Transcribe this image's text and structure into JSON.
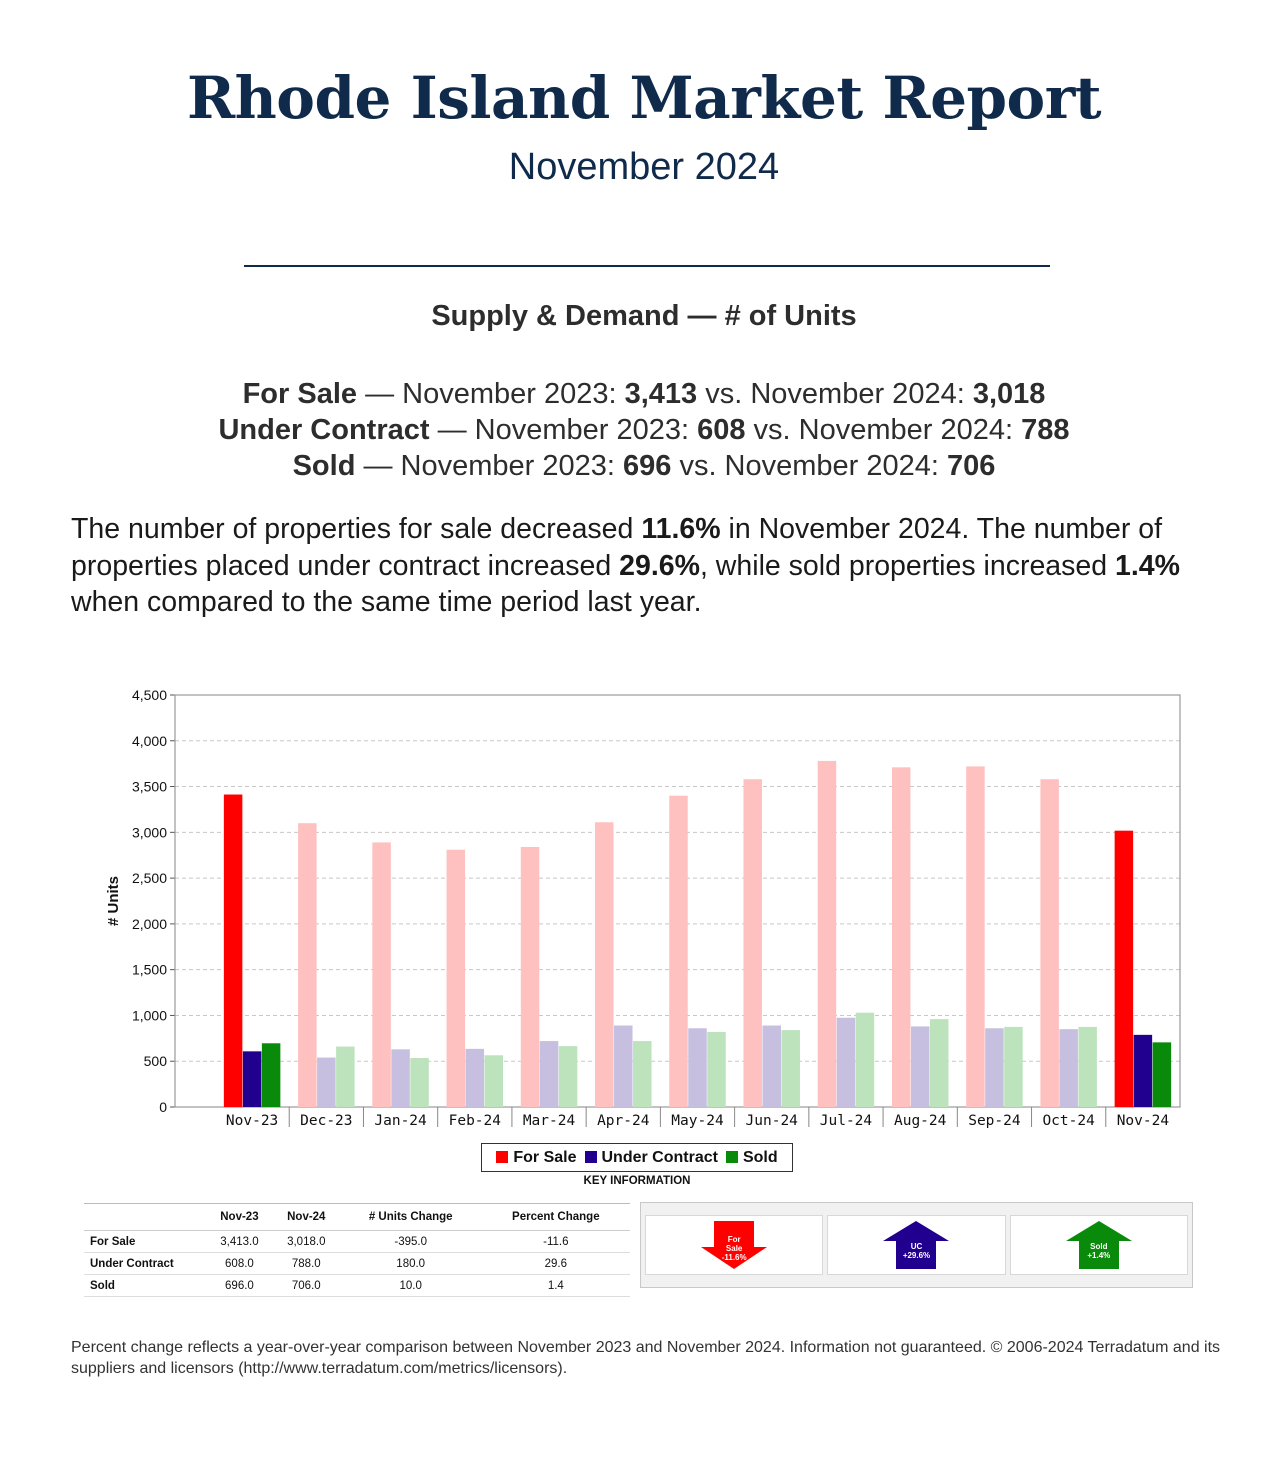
{
  "header": {
    "title": "Rhode Island Market Report",
    "subtitle": "November 2024"
  },
  "section_heading": "Supply & Demand — # of Units",
  "comparisons": [
    {
      "label": "For Sale",
      "sep": " — November 2023: ",
      "v2023": "3,413",
      "mid": " vs. November 2024: ",
      "v2024": "3,018"
    },
    {
      "label": "Under Contract",
      "sep": " — November 2023: ",
      "v2023": "608",
      "mid": " vs. November 2024: ",
      "v2024": "788"
    },
    {
      "label": "Sold",
      "sep": " — November 2023: ",
      "v2023": "696",
      "mid": " vs. November 2024: ",
      "v2024": "706"
    }
  ],
  "summary": {
    "p1": "The number of properties for sale decreased ",
    "b1": "11.6%",
    "p2": " in November 2024. The number of properties placed under contract increased ",
    "b2": "29.6%",
    "p3": ", while sold properties increased ",
    "b3": "1.4%",
    "p4": " when compared to the same time period last year."
  },
  "chart_data": {
    "type": "bar",
    "ylabel": "# Units",
    "ylim": [
      0,
      4500
    ],
    "yticks": [
      0,
      500,
      1000,
      1500,
      2000,
      2500,
      3000,
      3500,
      4000,
      4500
    ],
    "ytick_labels": [
      "0",
      "500",
      "1,000",
      "1,500",
      "2,000",
      "2,500",
      "3,000",
      "3,500",
      "4,000",
      "4,500"
    ],
    "grid": true,
    "categories": [
      "Nov-23",
      "Dec-23",
      "Jan-24",
      "Feb-24",
      "Mar-24",
      "Apr-24",
      "May-24",
      "Jun-24",
      "Jul-24",
      "Aug-24",
      "Sep-24",
      "Oct-24",
      "Nov-24"
    ],
    "highlighted_categories": [
      "Nov-23",
      "Nov-24"
    ],
    "series": [
      {
        "name": "For Sale",
        "color": "#ff0000",
        "faded_color": "#ffc0c0",
        "values": [
          3413,
          3100,
          2890,
          2810,
          2840,
          3110,
          3400,
          3580,
          3780,
          3710,
          3720,
          3580,
          3018
        ]
      },
      {
        "name": "Under Contract",
        "color": "#22008f",
        "faded_color": "#c6bfe0",
        "values": [
          608,
          540,
          630,
          635,
          720,
          890,
          860,
          890,
          975,
          880,
          860,
          850,
          788
        ]
      },
      {
        "name": "Sold",
        "color": "#0a8a0a",
        "faded_color": "#bde3bd",
        "values": [
          696,
          660,
          535,
          565,
          665,
          720,
          820,
          840,
          1030,
          960,
          875,
          875,
          706
        ]
      }
    ],
    "legend_position": "bottom-center"
  },
  "key_info": {
    "title": "KEY INFORMATION",
    "columns": [
      "",
      "Nov-23",
      "Nov-24",
      "# Units Change",
      "Percent Change"
    ],
    "rows": [
      [
        "For Sale",
        "3,413.0",
        "3,018.0",
        "-395.0",
        "-11.6"
      ],
      [
        "Under Contract",
        "608.0",
        "788.0",
        "180.0",
        "29.6"
      ],
      [
        "Sold",
        "696.0",
        "706.0",
        "10.0",
        "1.4"
      ]
    ]
  },
  "indicators": [
    {
      "line1": "For",
      "line2": "Sale",
      "line3": "-11.6%",
      "direction": "down",
      "color": "#ff0000"
    },
    {
      "line1": "UC",
      "line2": "+29.6%",
      "line3": "",
      "direction": "up",
      "color": "#22008f"
    },
    {
      "line1": "Sold",
      "line2": "+1.4%",
      "line3": "",
      "direction": "up",
      "color": "#0a8a0a"
    }
  ],
  "footer": "Percent change reflects a year-over-year comparison between November 2023 and November 2024. Information not guaranteed. © 2006-2024 Terradatum and its suppliers and licensors (http://www.terradatum.com/metrics/licensors)."
}
